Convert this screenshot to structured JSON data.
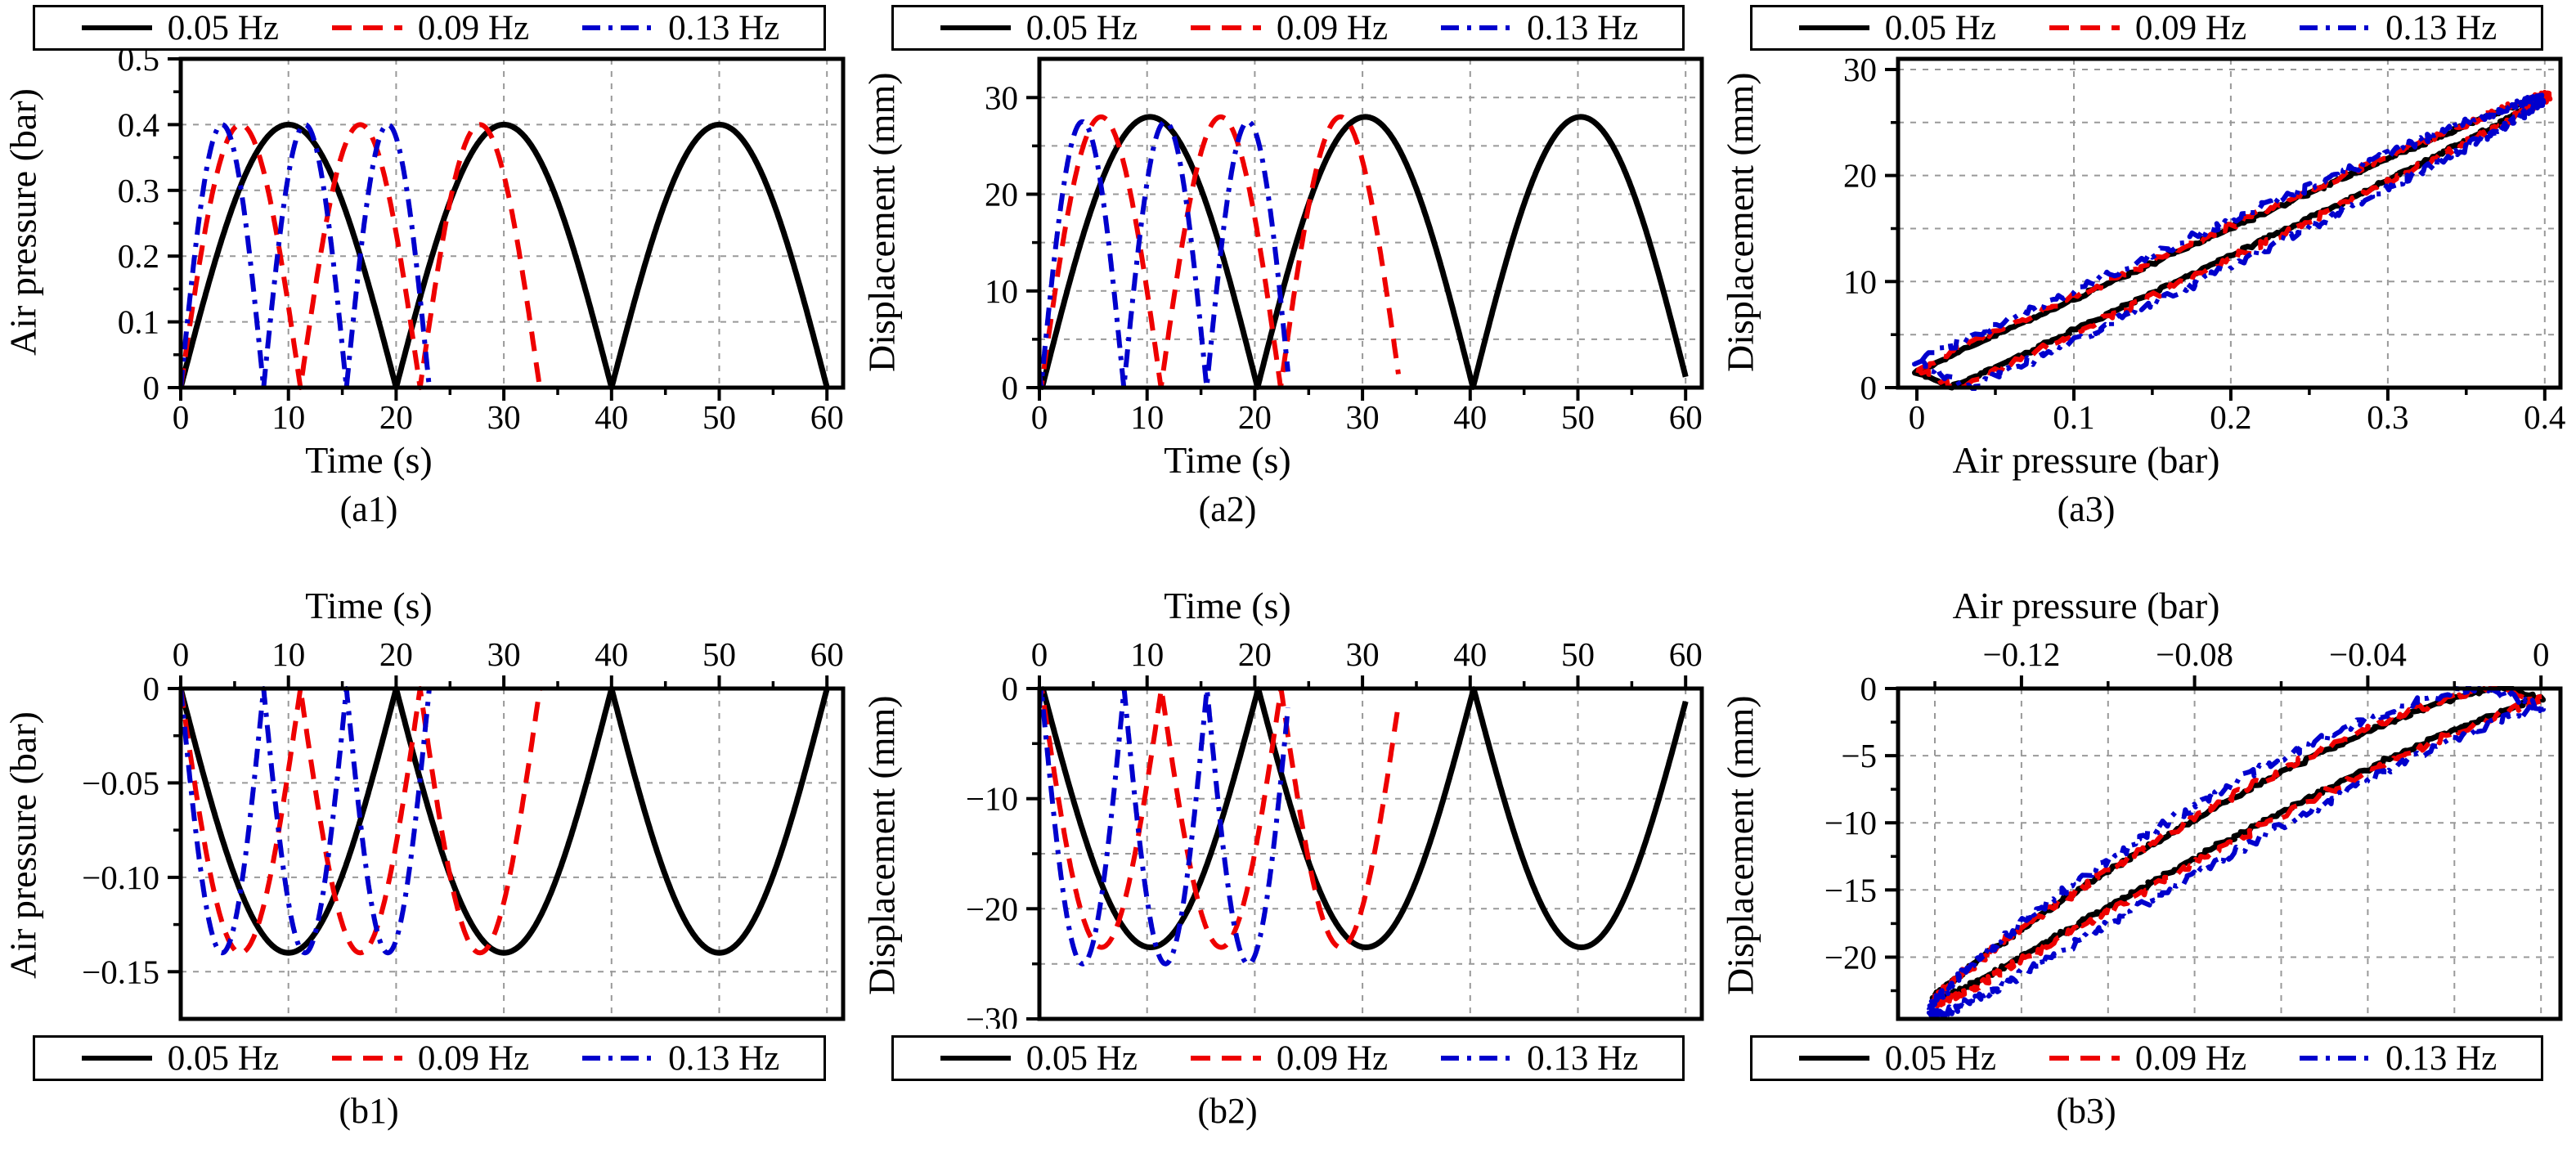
{
  "page": {
    "background": "#ffffff"
  },
  "colors": {
    "black": "#000000",
    "red": "#ee0000",
    "blue": "#0000cd",
    "grid": "#999999",
    "frame": "#000000"
  },
  "legend": {
    "items": [
      {
        "label": "0.05 Hz",
        "color": "black",
        "dash": "solid"
      },
      {
        "label": "0.09 Hz",
        "color": "red",
        "dash": "dashed"
      },
      {
        "label": "0.13 Hz",
        "color": "blue",
        "dash": "dashdot"
      }
    ]
  },
  "chart_data": [
    {
      "id": "a1",
      "caption": "(a1)",
      "type": "line",
      "kind": "time",
      "labels_side": "bottom",
      "x_label": "Time (s)",
      "y_label": "Air pressure (bar)",
      "grid_on": true,
      "legend_position": "top",
      "x": {
        "min": 0,
        "max": 61.5,
        "ticks": [
          0,
          10,
          20,
          30,
          40,
          50,
          60
        ],
        "tick_labels": [
          "0",
          "10",
          "20",
          "30",
          "40",
          "50",
          "60"
        ],
        "minor": [
          5,
          15,
          25,
          35,
          45,
          55
        ],
        "grid": [
          10,
          20,
          30,
          40,
          50,
          60
        ]
      },
      "y": {
        "min": 0,
        "max": 0.5,
        "ticks": [
          0,
          0.1,
          0.2,
          0.3,
          0.4,
          0.5
        ],
        "tick_labels": [
          "0",
          "0.1",
          "0.2",
          "0.3",
          "0.4",
          "0.5"
        ],
        "minor": [
          0.05,
          0.15,
          0.25,
          0.35,
          0.45
        ],
        "grid": [
          0.1,
          0.2,
          0.3,
          0.4
        ]
      },
      "series": [
        {
          "name": "0.05 Hz",
          "color": "black",
          "dash": "solid",
          "width": 7,
          "waveform": "rectified_sine",
          "frequency_hz": 0.05,
          "cycles": 3,
          "amplitude": 0.4,
          "phase_lag": 0,
          "peak_value": 0.4,
          "peak_times_s": [
            10,
            30,
            50
          ],
          "zero_times_s": [
            0,
            20,
            40,
            60
          ]
        },
        {
          "name": "0.09 Hz",
          "color": "red",
          "dash": "dashed",
          "width": 6,
          "waveform": "rectified_sine",
          "frequency_hz": 0.09,
          "cycles": 3,
          "amplitude": 0.4,
          "phase_lag": 0,
          "peak_value": 0.4,
          "peak_times_s": [
            5.6,
            16.7,
            27.8
          ],
          "zero_times_s": [
            0,
            11.1,
            22.2,
            33.3
          ]
        },
        {
          "name": "0.13 Hz",
          "color": "blue",
          "dash": "dashdot",
          "width": 6,
          "waveform": "rectified_sine",
          "frequency_hz": 0.13,
          "cycles": 3,
          "amplitude": 0.4,
          "phase_lag": 0,
          "peak_value": 0.4,
          "peak_times_s": [
            3.8,
            11.5,
            19.2
          ],
          "zero_times_s": [
            0,
            7.7,
            15.4,
            23.1
          ]
        }
      ]
    },
    {
      "id": "a2",
      "caption": "(a2)",
      "type": "line",
      "kind": "time",
      "labels_side": "bottom",
      "x_label": "Time (s)",
      "y_label": "Displacement (mm)",
      "grid_on": true,
      "legend_position": "top",
      "x": {
        "min": 0,
        "max": 61.5,
        "ticks": [
          0,
          10,
          20,
          30,
          40,
          50,
          60
        ],
        "tick_labels": [
          "0",
          "10",
          "20",
          "30",
          "40",
          "50",
          "60"
        ],
        "minor": [
          5,
          15,
          25,
          35,
          45,
          55
        ],
        "grid": [
          10,
          20,
          30,
          40,
          50,
          60
        ]
      },
      "y": {
        "min": 0,
        "max": 34,
        "ticks": [
          0,
          10,
          20,
          30
        ],
        "tick_labels": [
          "0",
          "10",
          "20",
          "30"
        ],
        "minor": [
          5,
          15,
          25
        ],
        "grid": [
          5,
          10,
          15,
          20,
          25,
          30
        ]
      },
      "series": [
        {
          "name": "0.05 Hz",
          "color": "black",
          "dash": "solid",
          "width": 7,
          "waveform": "rectified_sine",
          "frequency_hz": 0.05,
          "cycles": 3,
          "amplitude": 28,
          "phase_lag": 0.04,
          "peak_value": 28
        },
        {
          "name": "0.09 Hz",
          "color": "red",
          "dash": "dashed",
          "width": 6,
          "waveform": "rectified_sine",
          "frequency_hz": 0.09,
          "cycles": 3,
          "amplitude": 28,
          "phase_lag": 0.05,
          "peak_value": 28
        },
        {
          "name": "0.13 Hz",
          "color": "blue",
          "dash": "dashdot",
          "width": 6,
          "waveform": "rectified_sine",
          "frequency_hz": 0.13,
          "cycles": 3,
          "amplitude": 27.5,
          "phase_lag": 0.06,
          "peak_value": 27.5
        }
      ]
    },
    {
      "id": "a3",
      "caption": "(a3)",
      "type": "line",
      "kind": "loop",
      "labels_side": "bottom",
      "x_label": "Air pressure (bar)",
      "y_label": "Displacement (mm)",
      "grid_on": true,
      "legend_position": "top",
      "x": {
        "min": -0.012,
        "max": 0.41,
        "ticks": [
          0,
          0.1,
          0.2,
          0.3,
          0.4
        ],
        "tick_labels": [
          "0",
          "0.1",
          "0.2",
          "0.3",
          "0.4"
        ],
        "minor": [
          0.05,
          0.15,
          0.25,
          0.35
        ],
        "grid": [
          0.1,
          0.2,
          0.3,
          0.4
        ]
      },
      "y": {
        "min": 0,
        "max": 31,
        "ticks": [
          0,
          10,
          20,
          30
        ],
        "tick_labels": [
          "0",
          "10",
          "20",
          "30"
        ],
        "minor": [
          5,
          15,
          25
        ],
        "grid": [
          5,
          10,
          15,
          20,
          25,
          30
        ]
      },
      "series": [
        {
          "name": "0.05 Hz",
          "color": "black",
          "dash": "solid",
          "width": 7,
          "loop": "hysteresis",
          "pressure_peak": 0.4,
          "displacement_peak": 27.5,
          "displacement_at_zero_pressure": 1.5,
          "lag": 0.055,
          "gamma": 1.0,
          "noise": 0.12
        },
        {
          "name": "0.09 Hz",
          "color": "red",
          "dash": "dashed",
          "width": 6,
          "loop": "hysteresis",
          "pressure_peak": 0.402,
          "displacement_peak": 27.6,
          "displacement_at_zero_pressure": 1.8,
          "lag": 0.065,
          "gamma": 1.0,
          "noise": 0.3
        },
        {
          "name": "0.13 Hz",
          "color": "blue",
          "dash": "dashdot",
          "width": 6,
          "loop": "hysteresis",
          "pressure_peak": 0.398,
          "displacement_peak": 27.2,
          "displacement_at_zero_pressure": 2.4,
          "lag": 0.09,
          "gamma": 1.0,
          "noise": 0.4
        }
      ]
    },
    {
      "id": "b1",
      "caption": "(b1)",
      "type": "line",
      "kind": "time",
      "labels_side": "top",
      "x_label": "Time (s)",
      "y_label": "Air pressure (bar)",
      "grid_on": true,
      "legend_position": "bottom",
      "x": {
        "min": 0,
        "max": 61.5,
        "ticks": [
          0,
          10,
          20,
          30,
          40,
          50,
          60
        ],
        "tick_labels": [
          "0",
          "10",
          "20",
          "30",
          "40",
          "50",
          "60"
        ],
        "minor": [
          5,
          15,
          25,
          35,
          45,
          55
        ],
        "grid": [
          10,
          20,
          30,
          40,
          50,
          60
        ]
      },
      "y": {
        "min": -0.175,
        "max": 0,
        "ticks": [
          0,
          -0.05,
          -0.1,
          -0.15
        ],
        "tick_labels": [
          "0",
          "−0.05",
          "−0.10",
          "−0.15"
        ],
        "minor": [
          -0.025,
          -0.075,
          -0.125
        ],
        "grid": [
          -0.05,
          -0.1,
          -0.15
        ]
      },
      "series": [
        {
          "name": "0.05 Hz",
          "color": "black",
          "dash": "solid",
          "width": 7,
          "waveform": "rectified_sine",
          "frequency_hz": 0.05,
          "cycles": 3,
          "amplitude": -0.14,
          "phase_lag": 0,
          "peak_value": -0.14,
          "peak_times_s": [
            10,
            30,
            50
          ]
        },
        {
          "name": "0.09 Hz",
          "color": "red",
          "dash": "dashed",
          "width": 6,
          "waveform": "rectified_sine",
          "frequency_hz": 0.09,
          "cycles": 3,
          "amplitude": -0.14,
          "phase_lag": 0,
          "peak_value": -0.14
        },
        {
          "name": "0.13 Hz",
          "color": "blue",
          "dash": "dashdot",
          "width": 6,
          "waveform": "rectified_sine",
          "frequency_hz": 0.13,
          "cycles": 3,
          "amplitude": -0.14,
          "phase_lag": 0,
          "peak_value": -0.14
        }
      ]
    },
    {
      "id": "b2",
      "caption": "(b2)",
      "type": "line",
      "kind": "time",
      "labels_side": "top",
      "x_label": "Time (s)",
      "y_label": "Displacement (mm)",
      "grid_on": true,
      "legend_position": "bottom",
      "x": {
        "min": 0,
        "max": 61.5,
        "ticks": [
          0,
          10,
          20,
          30,
          40,
          50,
          60
        ],
        "tick_labels": [
          "0",
          "10",
          "20",
          "30",
          "40",
          "50",
          "60"
        ],
        "minor": [
          5,
          15,
          25,
          35,
          45,
          55
        ],
        "grid": [
          10,
          20,
          30,
          40,
          50,
          60
        ]
      },
      "y": {
        "min": -30,
        "max": 0,
        "ticks": [
          0,
          -10,
          -20,
          -30
        ],
        "tick_labels": [
          "0",
          "−10",
          "−20",
          "−30"
        ],
        "minor": [
          -5,
          -15,
          -25
        ],
        "grid": [
          -5,
          -10,
          -15,
          -20,
          -25
        ]
      },
      "series": [
        {
          "name": "0.05 Hz",
          "color": "black",
          "dash": "solid",
          "width": 7,
          "waveform": "rectified_sine",
          "frequency_hz": 0.05,
          "cycles": 3,
          "amplitude": -23.5,
          "phase_lag": 0.05,
          "peak_value": -23.5
        },
        {
          "name": "0.09 Hz",
          "color": "red",
          "dash": "dashed",
          "width": 6,
          "waveform": "rectified_sine",
          "frequency_hz": 0.09,
          "cycles": 3,
          "amplitude": -23.5,
          "phase_lag": 0.06,
          "peak_value": -23.5
        },
        {
          "name": "0.13 Hz",
          "color": "blue",
          "dash": "dashdot",
          "width": 6,
          "waveform": "rectified_sine",
          "frequency_hz": 0.13,
          "cycles": 3,
          "amplitude": -25,
          "phase_lag": 0.07,
          "peak_value": -25
        }
      ]
    },
    {
      "id": "b3",
      "caption": "(b3)",
      "type": "line",
      "kind": "loop",
      "labels_side": "top",
      "x_label": "Air pressure (bar)",
      "y_label": "Displacement (mm)",
      "grid_on": true,
      "legend_position": "bottom",
      "x": {
        "min": -0.1485,
        "max": 0.0045,
        "ticks": [
          -0.12,
          -0.08,
          -0.04,
          0
        ],
        "tick_labels": [
          "−0.12",
          "−0.08",
          "−0.04",
          "0"
        ],
        "minor": [
          -0.14,
          -0.1,
          -0.06,
          -0.02
        ],
        "grid": [
          -0.14,
          -0.12,
          -0.1,
          -0.08,
          -0.06,
          -0.04,
          -0.02,
          0
        ]
      },
      "y": {
        "min": -24.6,
        "max": 0,
        "ticks": [
          0,
          -5,
          -10,
          -15,
          -20
        ],
        "tick_labels": [
          "0",
          "−5",
          "−10",
          "−15",
          "−20"
        ],
        "minor": [
          -2.5,
          -7.5,
          -12.5,
          -17.5,
          -22.5
        ],
        "grid": [
          -5,
          -10,
          -15,
          -20
        ]
      },
      "series": [
        {
          "name": "0.05 Hz",
          "color": "black",
          "dash": "solid",
          "width": 7,
          "loop": "hysteresis",
          "pressure_peak": -0.14,
          "displacement_peak": -23.2,
          "displacement_at_zero_pressure": -1,
          "lag": 0.07,
          "gamma": 1.3,
          "noise": 0.12
        },
        {
          "name": "0.09 Hz",
          "color": "red",
          "dash": "dashed",
          "width": 6,
          "loop": "hysteresis",
          "pressure_peak": -0.14,
          "displacement_peak": -23.4,
          "displacement_at_zero_pressure": -1.2,
          "lag": 0.08,
          "gamma": 1.3,
          "noise": 0.28
        },
        {
          "name": "0.13 Hz",
          "color": "blue",
          "dash": "dashdot",
          "width": 6,
          "loop": "hysteresis",
          "pressure_peak": -0.141,
          "displacement_peak": -24.3,
          "displacement_at_zero_pressure": -2.5,
          "lag": 0.115,
          "gamma": 1.35,
          "noise": 0.33
        }
      ]
    }
  ]
}
